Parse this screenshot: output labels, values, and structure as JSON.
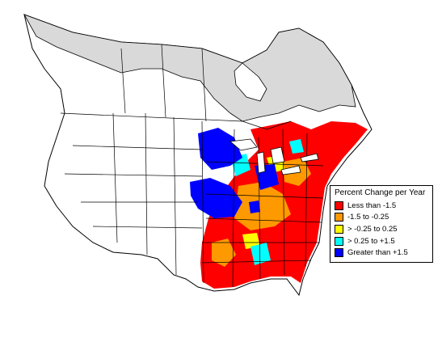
{
  "legend": {
    "title": "Percent Change per Year",
    "items": [
      {
        "label": "Less than -1.5",
        "color": "#ff0000"
      },
      {
        "label": "-1.5 to -0.25",
        "color": "#ff9900"
      },
      {
        "label": "> -0.25 to 0.25",
        "color": "#ffff00"
      },
      {
        "label": "> 0.25 to +1.5",
        "color": "#00ffff"
      },
      {
        "label": "Greater than +1.5",
        "color": "#0000ff"
      }
    ]
  },
  "colors": {
    "out_of_range": "#d9d9d9",
    "land": "#ffffff",
    "borders": "#000000"
  }
}
